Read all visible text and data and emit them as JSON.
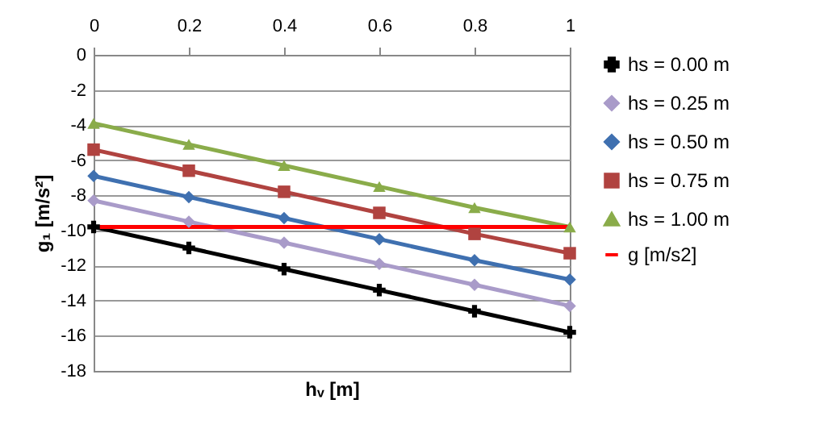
{
  "chart_data": {
    "type": "line",
    "xlabel": "hᵥ [m]",
    "ylabel": "g₁ [m/s²]",
    "x": [
      0,
      0.2,
      0.4,
      0.6,
      0.8,
      1
    ],
    "series": [
      {
        "name": "hs = 0.00 m",
        "color": "#000000",
        "marker": "cross",
        "values": [
          -9.8,
          -11.0,
          -12.2,
          -13.4,
          -14.6,
          -15.8
        ]
      },
      {
        "name": "hs = 0.25 m",
        "color": "#a99bc9",
        "marker": "diamond",
        "values": [
          -8.3,
          -9.5,
          -10.7,
          -11.9,
          -13.1,
          -14.3
        ]
      },
      {
        "name": "hs = 0.50 m",
        "color": "#3f70b0",
        "marker": "diamond",
        "values": [
          -6.9,
          -8.1,
          -9.3,
          -10.5,
          -11.7,
          -12.8
        ]
      },
      {
        "name": "hs = 0.75 m",
        "color": "#b04340",
        "marker": "square",
        "values": [
          -5.4,
          -6.6,
          -7.8,
          -9.0,
          -10.2,
          -11.3
        ]
      },
      {
        "name": "hs = 1.00 m",
        "color": "#8aac4a",
        "marker": "triangle",
        "values": [
          -3.9,
          -5.1,
          -6.3,
          -7.5,
          -8.7,
          -9.8
        ]
      },
      {
        "name": "g [m/s2]",
        "color": "#ff0000",
        "marker": "none",
        "values": [
          -9.8,
          -9.8,
          -9.8,
          -9.8,
          -9.8,
          -9.8
        ]
      }
    ],
    "xlim": [
      0,
      1
    ],
    "xticks": [
      0,
      0.2,
      0.4,
      0.6,
      0.8,
      1
    ],
    "ylim": [
      -18,
      0
    ],
    "yticks": [
      -18,
      -16,
      -14,
      -12,
      -10,
      -8,
      -6,
      -4,
      -2,
      0
    ],
    "grid": "y",
    "legend": "right",
    "line_style": "solid"
  }
}
